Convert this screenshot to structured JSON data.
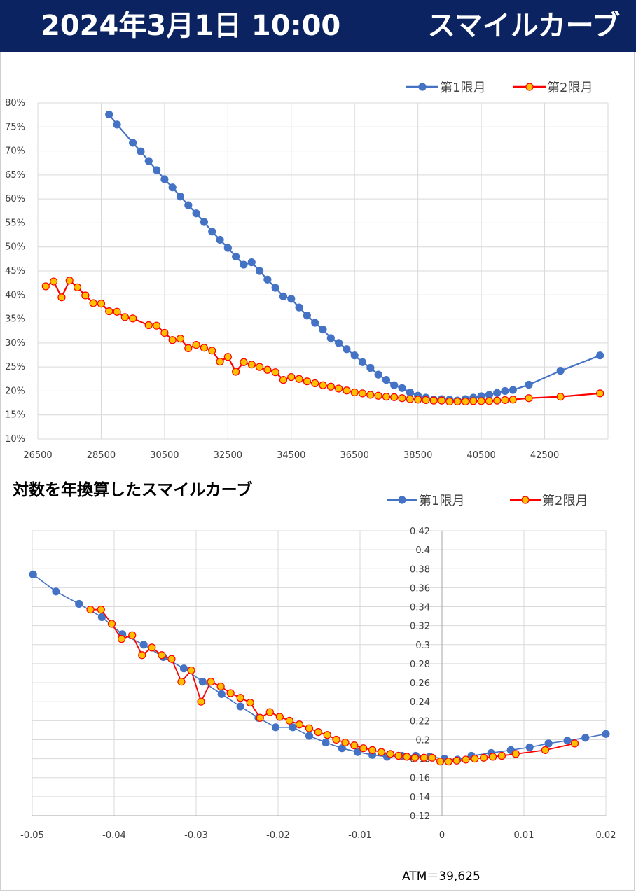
{
  "header": {
    "date": "2024年3月1日 10:00",
    "title": "スマイルカーブ"
  },
  "chart2_heading": "対数を年換算したスマイルカーブ",
  "atm_note": "ATM＝39,625",
  "colors": {
    "series1": "#4472c4",
    "series2_line": "#ff0000",
    "series2_fill": "#ffc000",
    "header_bg": "#0c2361"
  },
  "chart_data": [
    {
      "type": "line",
      "xlim": [
        26500,
        44500
      ],
      "ylim": [
        0.1,
        0.8
      ],
      "x_ticks": [
        "26500",
        "28500",
        "30500",
        "32500",
        "34500",
        "36500",
        "38500",
        "40500",
        "42500"
      ],
      "y_ticks": [
        "10%",
        "15%",
        "20%",
        "25%",
        "30%",
        "35%",
        "40%",
        "45%",
        "50%",
        "55%",
        "60%",
        "65%",
        "70%",
        "75%",
        "80%"
      ],
      "grid": true,
      "legend": "top-right",
      "series": [
        {
          "name": "第1限月",
          "x": [
            28750,
            29000,
            29500,
            29750,
            30000,
            30250,
            30500,
            30750,
            31000,
            31250,
            31500,
            31750,
            32000,
            32250,
            32500,
            32750,
            33000,
            33250,
            33500,
            33750,
            34000,
            34250,
            34500,
            34750,
            35000,
            35250,
            35500,
            35750,
            36000,
            36250,
            36500,
            36750,
            37000,
            37250,
            37500,
            37750,
            38000,
            38250,
            38500,
            38750,
            39000,
            39250,
            39500,
            39750,
            40000,
            40250,
            40500,
            40750,
            41000,
            41250,
            41500,
            42000,
            43000,
            44250
          ],
          "y": [
            0.776,
            0.755,
            0.717,
            0.699,
            0.679,
            0.66,
            0.641,
            0.624,
            0.605,
            0.587,
            0.57,
            0.552,
            0.532,
            0.515,
            0.498,
            0.48,
            0.463,
            0.468,
            0.45,
            0.432,
            0.415,
            0.397,
            0.392,
            0.374,
            0.357,
            0.342,
            0.328,
            0.31,
            0.3,
            0.287,
            0.274,
            0.26,
            0.248,
            0.234,
            0.223,
            0.212,
            0.206,
            0.197,
            0.19,
            0.186,
            0.182,
            0.183,
            0.182,
            0.18,
            0.183,
            0.186,
            0.189,
            0.192,
            0.196,
            0.2,
            0.202,
            0.213,
            0.242,
            0.274
          ]
        },
        {
          "name": "第2限月",
          "x": [
            26750,
            27000,
            27250,
            27500,
            27750,
            28000,
            28250,
            28500,
            28750,
            29000,
            29250,
            29500,
            30000,
            30250,
            30500,
            30750,
            31000,
            31250,
            31500,
            31750,
            32000,
            32250,
            32500,
            32750,
            33000,
            33250,
            33500,
            33750,
            34000,
            34250,
            34500,
            34750,
            35000,
            35250,
            35500,
            35750,
            36000,
            36250,
            36500,
            36750,
            37000,
            37250,
            37500,
            37750,
            38000,
            38250,
            38500,
            38750,
            39000,
            39250,
            39500,
            39750,
            40000,
            40250,
            40500,
            40750,
            41000,
            41250,
            41500,
            42000,
            43000,
            44250
          ],
          "y": [
            0.418,
            0.428,
            0.395,
            0.43,
            0.416,
            0.399,
            0.383,
            0.382,
            0.366,
            0.365,
            0.354,
            0.351,
            0.337,
            0.336,
            0.321,
            0.306,
            0.309,
            0.289,
            0.296,
            0.29,
            0.284,
            0.261,
            0.271,
            0.24,
            0.26,
            0.255,
            0.25,
            0.244,
            0.239,
            0.223,
            0.229,
            0.225,
            0.22,
            0.216,
            0.212,
            0.209,
            0.205,
            0.201,
            0.197,
            0.195,
            0.192,
            0.19,
            0.188,
            0.187,
            0.185,
            0.183,
            0.182,
            0.181,
            0.18,
            0.18,
            0.178,
            0.178,
            0.178,
            0.179,
            0.179,
            0.179,
            0.18,
            0.181,
            0.182,
            0.185,
            0.188,
            0.195
          ]
        }
      ]
    },
    {
      "type": "scatter",
      "xlim": [
        -0.05,
        0.02
      ],
      "ylim": [
        0.12,
        0.42
      ],
      "x_ticks": [
        "-0.05",
        "-0.04",
        "-0.03",
        "-0.02",
        "-0.01",
        "0",
        "0.01",
        "0.02"
      ],
      "y_ticks": [
        "0.12",
        "0.14",
        "0.16",
        "0.18",
        "0.2",
        "0.22",
        "0.24",
        "0.26",
        "0.28",
        "0.3",
        "0.32",
        "0.34",
        "0.36",
        "0.38",
        "0.4",
        "0.42"
      ],
      "grid": true,
      "legend": "top-right",
      "series": [
        {
          "name": "第1限月",
          "x": [
            -0.0499,
            -0.0471,
            -0.0443,
            -0.0415,
            -0.039,
            -0.0364,
            -0.034,
            -0.0315,
            -0.0292,
            -0.0269,
            -0.0246,
            -0.0224,
            -0.0203,
            -0.0182,
            -0.0162,
            -0.0142,
            -0.0122,
            -0.0103,
            -0.0085,
            -0.0067,
            -0.0049,
            -0.0032,
            -0.0015,
            0.0003,
            0.0019,
            0.0036,
            0.006,
            0.0084,
            0.0107,
            0.013,
            0.0153,
            0.0175,
            0.02
          ],
          "y": [
            0.374,
            0.356,
            0.343,
            0.329,
            0.311,
            0.3,
            0.287,
            0.275,
            0.261,
            0.248,
            0.235,
            0.223,
            0.213,
            0.213,
            0.204,
            0.197,
            0.191,
            0.187,
            0.184,
            0.182,
            0.183,
            0.183,
            0.182,
            0.18,
            0.179,
            0.183,
            0.186,
            0.189,
            0.192,
            0.196,
            0.199,
            0.202,
            0.206
          ]
        },
        {
          "name": "第2限月",
          "x": [
            -0.0429,
            -0.0416,
            -0.0403,
            -0.0391,
            -0.0378,
            -0.0366,
            -0.0354,
            -0.0342,
            -0.033,
            -0.0318,
            -0.0306,
            -0.0294,
            -0.0282,
            -0.027,
            -0.0258,
            -0.0246,
            -0.0234,
            -0.0222,
            -0.021,
            -0.0198,
            -0.0186,
            -0.0174,
            -0.0162,
            -0.0151,
            -0.014,
            -0.0129,
            -0.0118,
            -0.0107,
            -0.0096,
            -0.0085,
            -0.0074,
            -0.0063,
            -0.0053,
            -0.0043,
            -0.0033,
            -0.0022,
            -0.0012,
            -0.0002,
            0.0008,
            0.0018,
            0.0029,
            0.004,
            0.0051,
            0.0062,
            0.0073,
            0.009,
            0.0126,
            0.0162
          ],
          "y": [
            0.337,
            0.337,
            0.322,
            0.306,
            0.31,
            0.289,
            0.297,
            0.289,
            0.285,
            0.261,
            0.273,
            0.24,
            0.261,
            0.256,
            0.249,
            0.244,
            0.239,
            0.223,
            0.229,
            0.224,
            0.22,
            0.216,
            0.212,
            0.208,
            0.205,
            0.2,
            0.197,
            0.194,
            0.191,
            0.189,
            0.187,
            0.185,
            0.183,
            0.182,
            0.181,
            0.181,
            0.181,
            0.177,
            0.177,
            0.178,
            0.179,
            0.18,
            0.181,
            0.182,
            0.183,
            0.185,
            0.189,
            0.196
          ]
        }
      ]
    }
  ]
}
